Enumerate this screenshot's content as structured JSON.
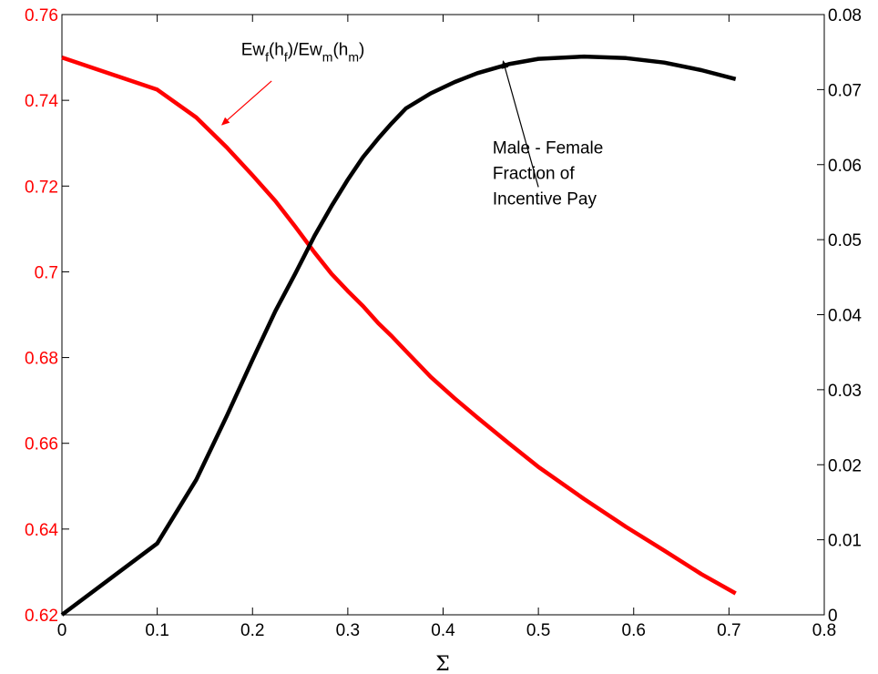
{
  "chart_data": {
    "type": "line",
    "title": "",
    "xlabel": "Σ",
    "xlim": [
      0,
      0.8
    ],
    "ylim_left": [
      0.62,
      0.76
    ],
    "ylim_right": [
      0,
      0.08
    ],
    "grid": false,
    "x_ticks": [
      "0",
      "0.1",
      "0.2",
      "0.3",
      "0.4",
      "0.5",
      "0.6",
      "0.7",
      "0.8"
    ],
    "y_left_ticks": [
      "0.62",
      "0.64",
      "0.66",
      "0.68",
      "0.7",
      "0.72",
      "0.74",
      "0.76"
    ],
    "y_right_ticks": [
      "0",
      "0.01",
      "0.02",
      "0.03",
      "0.04",
      "0.05",
      "0.06",
      "0.07",
      "0.08"
    ],
    "colors": {
      "left_axis": "#ff0000",
      "series_left": "#ff0000",
      "series_right": "#000000"
    },
    "series": [
      {
        "axis": "left",
        "color": "#ff0000",
        "x": [
          0,
          0.1,
          0.141,
          0.173,
          0.2,
          0.224,
          0.245,
          0.265,
          0.283,
          0.3,
          0.316,
          0.332,
          0.346,
          0.361,
          0.387,
          0.412,
          0.436,
          0.469,
          0.5,
          0.548,
          0.592,
          0.632,
          0.671,
          0.707
        ],
        "y": [
          0.75,
          0.7425,
          0.736,
          0.729,
          0.7225,
          0.7165,
          0.7105,
          0.7045,
          0.6995,
          0.6955,
          0.692,
          0.688,
          0.685,
          0.6815,
          0.6755,
          0.6705,
          0.666,
          0.66,
          0.6545,
          0.647,
          0.6405,
          0.635,
          0.6295,
          0.625
        ]
      },
      {
        "axis": "right",
        "color": "#000000",
        "x": [
          0,
          0.1,
          0.141,
          0.173,
          0.2,
          0.224,
          0.245,
          0.265,
          0.283,
          0.3,
          0.316,
          0.332,
          0.346,
          0.361,
          0.387,
          0.412,
          0.436,
          0.469,
          0.5,
          0.548,
          0.592,
          0.632,
          0.671,
          0.707
        ],
        "y": [
          0.0,
          0.0095,
          0.018,
          0.0265,
          0.034,
          0.0405,
          0.0455,
          0.0505,
          0.0545,
          0.058,
          0.061,
          0.0635,
          0.0655,
          0.0675,
          0.0695,
          0.071,
          0.0722,
          0.0734,
          0.0741,
          0.0744,
          0.0742,
          0.0736,
          0.0726,
          0.0714
        ]
      }
    ],
    "annotations": {
      "ratio_label": {
        "parts": [
          {
            "t": "Ew",
            "sub": false
          },
          {
            "t": "f",
            "sub": true
          },
          {
            "t": "(h",
            "sub": false
          },
          {
            "t": "f",
            "sub": true
          },
          {
            "t": ")/Ew",
            "sub": false
          },
          {
            "t": "m",
            "sub": true
          },
          {
            "t": "(h",
            "sub": false
          },
          {
            "t": "m",
            "sub": true
          },
          {
            "t": ")",
            "sub": false
          }
        ],
        "text_at": [
          0.188,
          0.7505
        ],
        "arrow_from": [
          0.22,
          0.7445
        ],
        "arrow_to": [
          0.168,
          0.7343
        ]
      },
      "gap_label": {
        "lines": [
          "Male - Female",
          "Fraction of",
          "Incentive Pay"
        ],
        "text_at": [
          0.452,
          0.0615
        ],
        "arrow_from": [
          0.5,
          0.057
        ],
        "arrow_to": [
          0.463,
          0.0738
        ]
      }
    }
  }
}
